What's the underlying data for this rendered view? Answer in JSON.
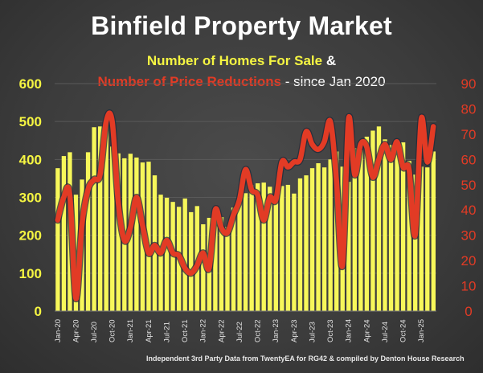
{
  "chart_data": {
    "type": "bar+line",
    "title": "Binfield Property Market",
    "subtitle_part1": "Number of Homes For Sale",
    "subtitle_amp": " &",
    "subtitle_part2": "Number of Price Reductions",
    "subtitle_part3": " - since Jan 2020",
    "footer": "Independent 3rd Party Data from TwentyEA for RG42 & compiled by Denton House Research",
    "left_axis": {
      "ylim": [
        0,
        600
      ],
      "ticks": [
        "0",
        "100",
        "200",
        "300",
        "400",
        "500",
        "600"
      ],
      "color": "#f5f542"
    },
    "right_axis": {
      "ylim": [
        0,
        90
      ],
      "ticks": [
        "0",
        "10",
        "20",
        "30",
        "40",
        "50",
        "60",
        "70",
        "80",
        "90"
      ],
      "color": "#e23b25"
    },
    "x_tick_labels": [
      "Jan-20",
      "Apr-20",
      "Jul-20",
      "Oct-20",
      "Jan-21",
      "Apr-21",
      "Jul-21",
      "Oct-21",
      "Jan-22",
      "Apr-22",
      "Jul-22",
      "Oct-22",
      "Jan-23",
      "Apr-23",
      "Jul-23",
      "Oct-23",
      "Jan-24",
      "Apr-24",
      "Jul-24",
      "Oct-24",
      "Jan-25"
    ],
    "series": [
      {
        "name": "Number of Homes For Sale",
        "axis": "left",
        "type": "bar",
        "color": "#f7f75a",
        "values": [
          377,
          409,
          419,
          307,
          347,
          419,
          485,
          487,
          500,
          434,
          416,
          403,
          415,
          405,
          392,
          394,
          358,
          307,
          299,
          288,
          275,
          297,
          261,
          277,
          229,
          246,
          249,
          248,
          222,
          273,
          286,
          311,
          333,
          337,
          339,
          328,
          294,
          330,
          333,
          310,
          350,
          358,
          377,
          390,
          379,
          400,
          421,
          381,
          341,
          430,
          424,
          460,
          476,
          487,
          453,
          438,
          443,
          445,
          396,
          360,
          381,
          379,
          421
        ]
      },
      {
        "name": "Number of Price Reductions",
        "axis": "right",
        "type": "line",
        "color": "#e23b25",
        "values": [
          36,
          45,
          46,
          5,
          34,
          48,
          52,
          54,
          75,
          75,
          43,
          28,
          33,
          45,
          34,
          23,
          26,
          23,
          28,
          23,
          22,
          17,
          15,
          18,
          23,
          17,
          40,
          33,
          31,
          38,
          44,
          56,
          48,
          46,
          36,
          45,
          44,
          59,
          57,
          59,
          60,
          71,
          66,
          64,
          67,
          75,
          52,
          18,
          76,
          54,
          66,
          65,
          53,
          60,
          66,
          60,
          67,
          57,
          56,
          30,
          76,
          59,
          73
        ]
      }
    ]
  }
}
